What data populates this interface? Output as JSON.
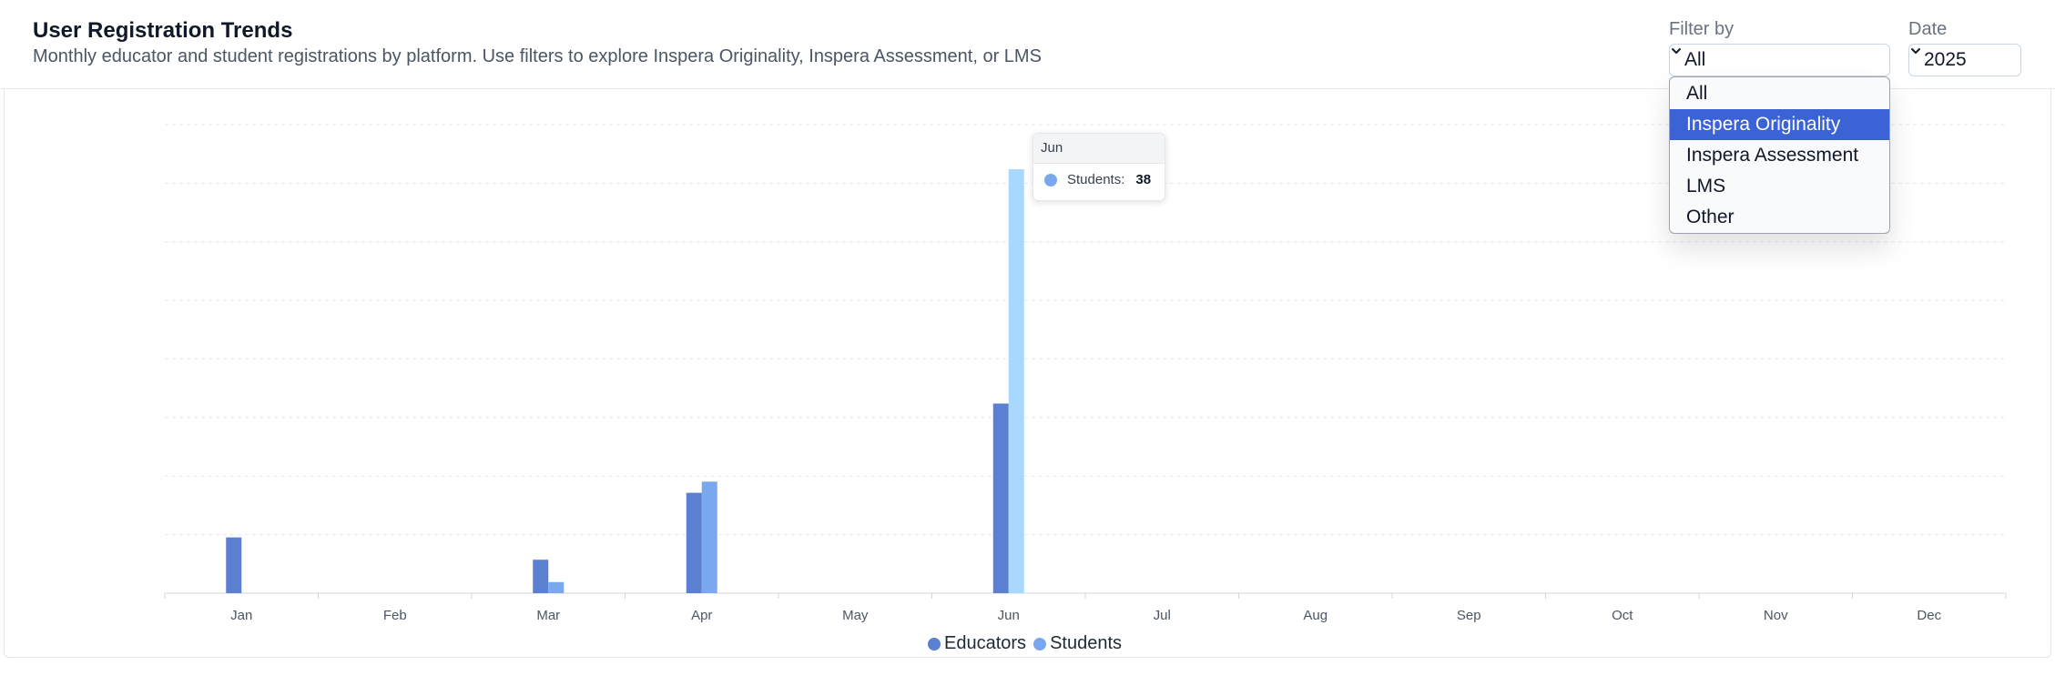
{
  "header": {
    "title": "User Registration Trends",
    "subtitle": "Monthly educator and student registrations by platform. Use filters to explore Inspera Originality, Inspera Assessment, or LMS"
  },
  "filters": {
    "filter_by_label": "Filter by",
    "filter_by_value": "All",
    "date_label": "Date",
    "date_value": "2025",
    "filter_options": [
      "All",
      "Inspera Originality",
      "Inspera Assessment",
      "LMS",
      "Other"
    ],
    "highlighted_option": "Inspera Originality"
  },
  "tooltip": {
    "title": "Jun",
    "series": "Students:",
    "value": "38"
  },
  "chart_data": {
    "type": "bar",
    "categories": [
      "Jan",
      "Feb",
      "Mar",
      "Apr",
      "May",
      "Jun",
      "Jul",
      "Aug",
      "Sep",
      "Oct",
      "Nov",
      "Dec"
    ],
    "series": [
      {
        "name": "Educators",
        "values": [
          5,
          0,
          3,
          9,
          0,
          17,
          0,
          0,
          0,
          0,
          0,
          0
        ],
        "color": "#5b7fd1"
      },
      {
        "name": "Students",
        "values": [
          0,
          0,
          1,
          10,
          0,
          38,
          0,
          0,
          0,
          0,
          0,
          0
        ],
        "color": "#79a8ef",
        "highlight_color": "#a9d8ff"
      }
    ],
    "ylim": [
      0,
      42
    ],
    "grid": true,
    "legend_position": "bottom-center"
  },
  "colors": {
    "accent": "#3b63d6",
    "grid": "#e5e7eb",
    "axis": "#d1d5db",
    "tooltip_dot": "#79a8ef"
  },
  "icons": {
    "filter_chevron": "chevron-down-icon",
    "date_chevron": "chevron-down-icon"
  }
}
